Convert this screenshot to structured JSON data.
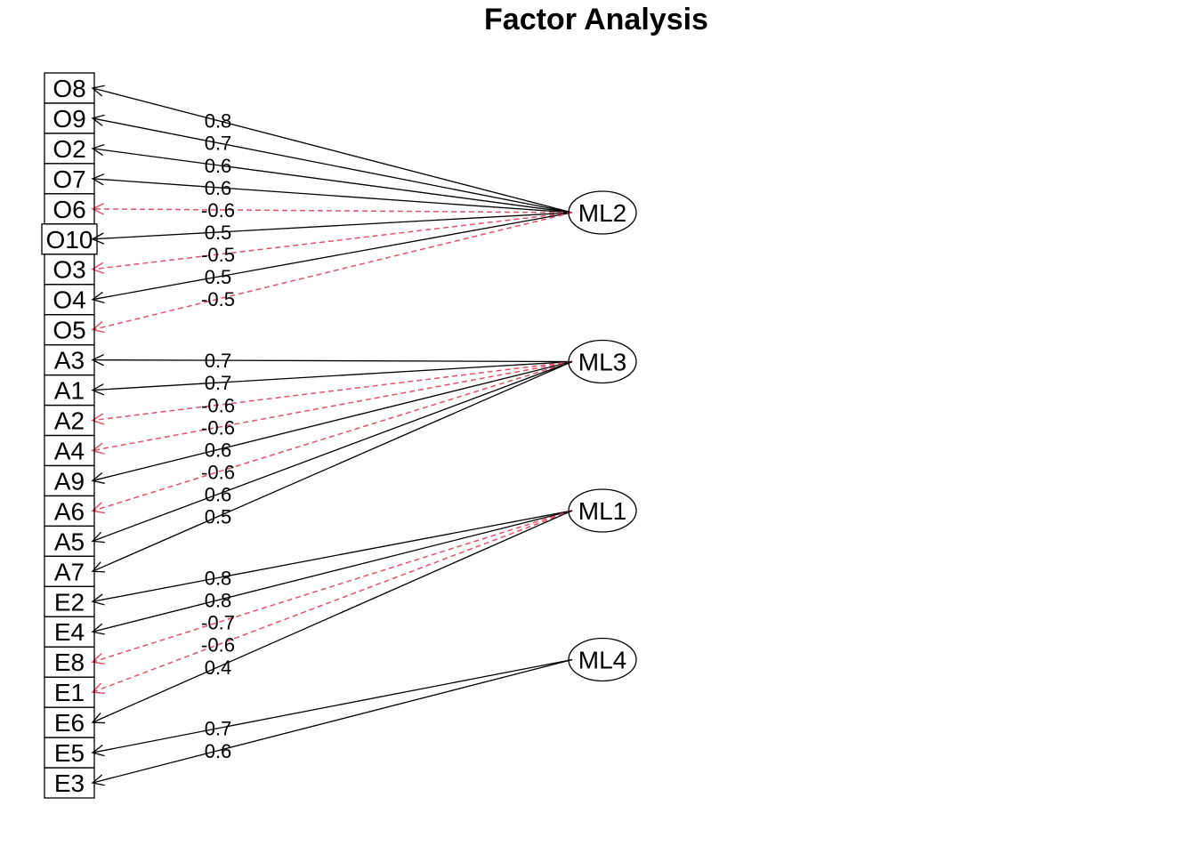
{
  "title": "Factor Analysis",
  "colors": {
    "positive": "#000000",
    "negative": "#DF536B"
  },
  "variables": [
    "O8",
    "O9",
    "O2",
    "O7",
    "O6",
    "O10",
    "O3",
    "O4",
    "O5",
    "A3",
    "A1",
    "A2",
    "A4",
    "A9",
    "A6",
    "A5",
    "A7",
    "E2",
    "E4",
    "E8",
    "E1",
    "E6",
    "E5",
    "E3"
  ],
  "factors": [
    "ML2",
    "ML3",
    "ML1",
    "ML4"
  ],
  "loadings": [
    {
      "variable": "O8",
      "factor": "ML2",
      "value": 0.8
    },
    {
      "variable": "O9",
      "factor": "ML2",
      "value": 0.7
    },
    {
      "variable": "O2",
      "factor": "ML2",
      "value": 0.6
    },
    {
      "variable": "O7",
      "factor": "ML2",
      "value": 0.6
    },
    {
      "variable": "O6",
      "factor": "ML2",
      "value": -0.6
    },
    {
      "variable": "O10",
      "factor": "ML2",
      "value": 0.5
    },
    {
      "variable": "O3",
      "factor": "ML2",
      "value": -0.5
    },
    {
      "variable": "O4",
      "factor": "ML2",
      "value": 0.5
    },
    {
      "variable": "O5",
      "factor": "ML2",
      "value": -0.5
    },
    {
      "variable": "A3",
      "factor": "ML3",
      "value": 0.7
    },
    {
      "variable": "A1",
      "factor": "ML3",
      "value": 0.7
    },
    {
      "variable": "A2",
      "factor": "ML3",
      "value": -0.6
    },
    {
      "variable": "A4",
      "factor": "ML3",
      "value": -0.6
    },
    {
      "variable": "A9",
      "factor": "ML3",
      "value": 0.6
    },
    {
      "variable": "A6",
      "factor": "ML3",
      "value": -0.6
    },
    {
      "variable": "A5",
      "factor": "ML3",
      "value": 0.6
    },
    {
      "variable": "A7",
      "factor": "ML3",
      "value": 0.5
    },
    {
      "variable": "E2",
      "factor": "ML1",
      "value": 0.8
    },
    {
      "variable": "E4",
      "factor": "ML1",
      "value": 0.8
    },
    {
      "variable": "E8",
      "factor": "ML1",
      "value": -0.7
    },
    {
      "variable": "E1",
      "factor": "ML1",
      "value": -0.6
    },
    {
      "variable": "E6",
      "factor": "ML1",
      "value": 0.4
    },
    {
      "variable": "E5",
      "factor": "ML4",
      "value": 0.7
    },
    {
      "variable": "E3",
      "factor": "ML4",
      "value": 0.6
    }
  ]
}
